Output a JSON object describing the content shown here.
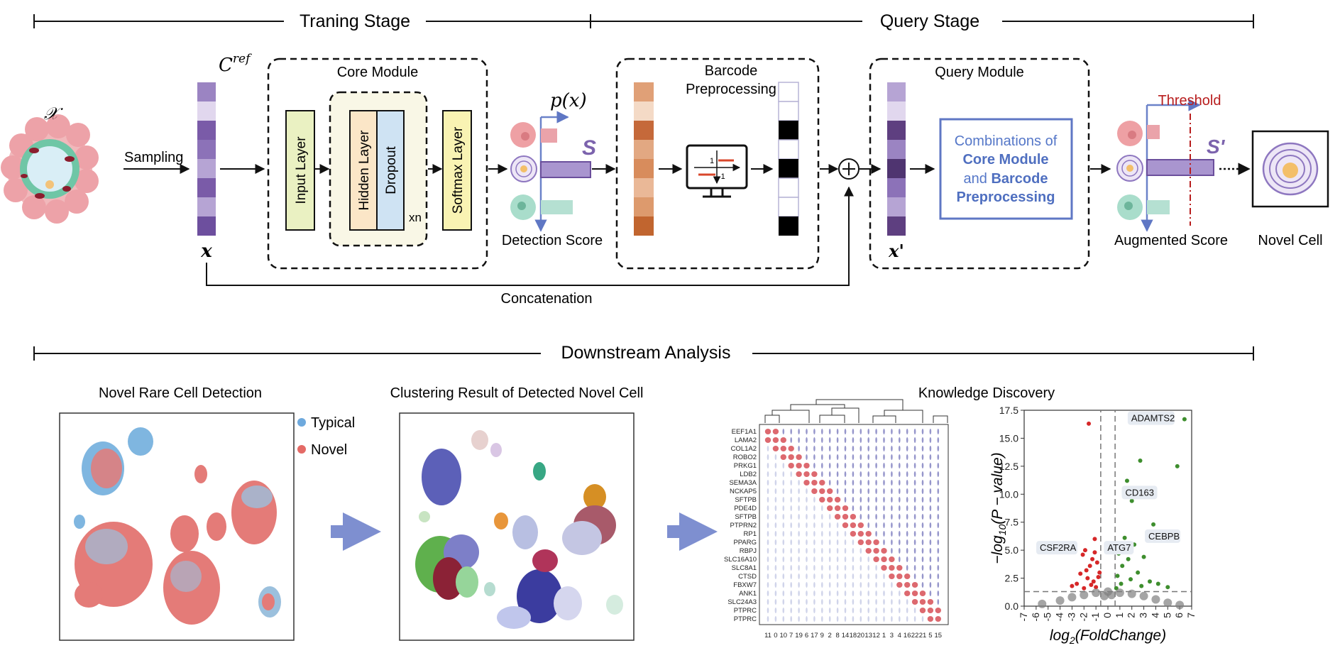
{
  "stages": {
    "training": "Traning Stage",
    "query": "Query Stage",
    "downstream": "Downstream Analysis"
  },
  "input": {
    "set_symbol": "𝒳",
    "sampling": "Sampling",
    "cref_main": "C",
    "cref_sup": "ref",
    "x_symbol": "x",
    "concatenation": "Concatenation"
  },
  "core_module": {
    "title": "Core Module",
    "input_layer": "Input Layer",
    "hidden_layer": "Hidden Layer",
    "dropout": "Dropout",
    "repeat": "xn",
    "softmax_layer": "Softmax Layer"
  },
  "detection": {
    "p_label": "p(x)",
    "s_label": "S",
    "score_label": "Detection Score"
  },
  "barcode": {
    "title_line1": "Barcode",
    "title_line2": "Preprocessing",
    "monitor_plus": "1",
    "monitor_minus": "-1"
  },
  "query_module": {
    "title": "Query Module",
    "x_prime": "x'",
    "box_line1": "Combinations of",
    "box_line2": "Core Module",
    "box_line3_plain": "and ",
    "box_line3_bold": "Barcode",
    "box_line4": "Preprocessing"
  },
  "augmented": {
    "threshold": "Threshold",
    "s_prime": "S'",
    "score_label": "Augmented Score",
    "novel_cell": "Novel Cell"
  },
  "panels": {
    "rare_title": "Novel Rare Cell Detection",
    "legend_typical": "Typical",
    "legend_novel": "Novel",
    "clustering_title": "Clustering Result of Detected Novel Cell",
    "knowledge_title": "Knowledge Discovery"
  },
  "violin": {
    "genes": [
      "EEF1A1",
      "LAMA2",
      "COL1A2",
      "ROBO2",
      "PRKG1",
      "LDB2",
      "SEMA3A",
      "NCKAP5",
      "SFTPB",
      "PDE4D",
      "SFTPB",
      "PTPRN2",
      "RP1",
      "PPARG",
      "RBPJ",
      "SLC16A10",
      "SLC8A1",
      "CTSD",
      "FBXW7",
      "ANK1",
      "SLC24A3",
      "PTPRC",
      "PTPRC"
    ],
    "clusters": [
      "11",
      "0",
      "10",
      "7",
      "19",
      "6",
      "17",
      "9",
      "2",
      "8",
      "14",
      "18",
      "20",
      "13",
      "12",
      "1",
      "3",
      "4",
      "16",
      "22",
      "21",
      "5",
      "15"
    ]
  },
  "chart_data": {
    "type": "scatter",
    "title": "",
    "xlabel": "log2(FoldChange)",
    "ylabel": "-log10(P - value)",
    "xlim": [
      -7,
      7
    ],
    "ylim": [
      0,
      17.5
    ],
    "x_ticks": [
      "-7",
      "-6",
      "-5",
      "-4",
      "-3",
      "-2",
      "-1",
      "0",
      "1",
      "2",
      "3",
      "4",
      "5",
      "6",
      "7"
    ],
    "y_ticks": [
      "0.0",
      "2.5",
      "5.0",
      "7.5",
      "10.0",
      "12.5",
      "15.0",
      "17.5"
    ],
    "thresholds": {
      "x": [
        -0.6,
        0.6
      ],
      "y": 1.3
    },
    "series": [
      {
        "color": "#d62728",
        "points": [
          [
            -1.6,
            16.3
          ],
          [
            -2.1,
            4.6
          ],
          [
            -1.9,
            5.0
          ],
          [
            -1.3,
            4.2
          ],
          [
            -1.1,
            4.8
          ],
          [
            -1.5,
            3.6
          ],
          [
            -0.9,
            3.9
          ],
          [
            -2.3,
            2.9
          ],
          [
            -1.7,
            2.5
          ],
          [
            -1.2,
            2.2
          ],
          [
            -2.6,
            2.0
          ],
          [
            -0.8,
            2.6
          ],
          [
            -1.4,
            1.9
          ],
          [
            -1.0,
            1.7
          ],
          [
            -2.0,
            1.6
          ],
          [
            -3.0,
            1.8
          ],
          [
            -1.8,
            3.2
          ],
          [
            -0.7,
            3.0
          ],
          [
            -1.1,
            6.0
          ]
        ]
      },
      {
        "color": "#3e8e2e",
        "points": [
          [
            6.4,
            16.7
          ],
          [
            5.8,
            12.5
          ],
          [
            2.7,
            13.0
          ],
          [
            1.6,
            11.2
          ],
          [
            2.0,
            9.4
          ],
          [
            3.8,
            7.3
          ],
          [
            1.4,
            6.1
          ],
          [
            2.2,
            5.5
          ],
          [
            0.9,
            4.7
          ],
          [
            1.7,
            4.2
          ],
          [
            3.0,
            4.4
          ],
          [
            1.2,
            3.6
          ],
          [
            2.5,
            3.0
          ],
          [
            0.8,
            2.7
          ],
          [
            1.9,
            2.4
          ],
          [
            3.5,
            2.2
          ],
          [
            4.2,
            2.0
          ],
          [
            1.1,
            2.0
          ],
          [
            2.8,
            1.8
          ],
          [
            5.0,
            1.7
          ],
          [
            0.7,
            1.6
          ]
        ]
      },
      {
        "color": "#7f7f7f",
        "points": [
          [
            -5.5,
            0.2
          ],
          [
            -4.0,
            0.5
          ],
          [
            -3.0,
            0.8
          ],
          [
            -2.0,
            1.0
          ],
          [
            -1.0,
            1.2
          ],
          [
            0.0,
            1.3
          ],
          [
            1.0,
            1.2
          ],
          [
            2.0,
            1.1
          ],
          [
            3.0,
            0.9
          ],
          [
            4.0,
            0.6
          ],
          [
            5.0,
            0.3
          ],
          [
            6.0,
            0.1
          ],
          [
            -0.3,
            0.9
          ],
          [
            0.3,
            1.0
          ]
        ]
      }
    ],
    "annotations": [
      {
        "label": "ADAMTS2",
        "x": 6.4,
        "y": 16.7
      },
      {
        "label": "CD163",
        "x": 2.7,
        "y": 11.2
      },
      {
        "label": "CEBPB",
        "x": 3.8,
        "y": 7.3
      },
      {
        "label": "CSF2RA",
        "x": -1.6,
        "y": 5.0
      },
      {
        "label": "ATG7",
        "x": -0.1,
        "y": 5.0
      }
    ]
  }
}
